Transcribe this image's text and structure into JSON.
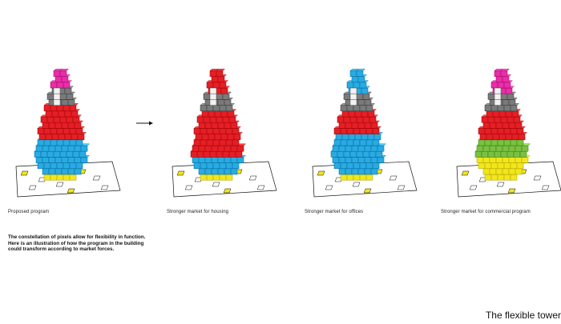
{
  "captions": {
    "proposed": "Proposed program",
    "housing": "Stronger market for housing",
    "offices": "Stronger market for offices",
    "commercial": "Stronger market for commercial program"
  },
  "description": {
    "line1": "The constellation of pixels allow for flexibility in function.",
    "line2": "Here is an illustration of how the program in the building",
    "line3": "could transform according to market forces."
  },
  "title": "The flexible tower",
  "colors": {
    "pink": "#e82ea8",
    "light_pink": "#f58fc4",
    "white_block": "#f2f2f2",
    "grey": "#7a7a7a",
    "red": "#e41f26",
    "blue": "#29abe2",
    "yellow": "#f2e61c",
    "green": "#7ac143"
  },
  "towers": [
    {
      "name": "tower-proposed",
      "layers": [
        {
          "color": "pink",
          "rows": 3
        },
        {
          "color": "grey",
          "rows": 3
        },
        {
          "color": "red",
          "rows": 6
        },
        {
          "color": "blue",
          "rows": 6
        },
        {
          "color": "yellow",
          "rows": 1
        }
      ]
    },
    {
      "name": "tower-housing",
      "layers": [
        {
          "color": "red",
          "rows": 4
        },
        {
          "color": "grey",
          "rows": 3
        },
        {
          "color": "red",
          "rows": 8
        },
        {
          "color": "blue",
          "rows": 3
        },
        {
          "color": "yellow",
          "rows": 1
        }
      ]
    },
    {
      "name": "tower-offices",
      "layers": [
        {
          "color": "blue",
          "rows": 4
        },
        {
          "color": "grey",
          "rows": 3
        },
        {
          "color": "red",
          "rows": 4
        },
        {
          "color": "blue",
          "rows": 7
        },
        {
          "color": "yellow",
          "rows": 1
        }
      ]
    },
    {
      "name": "tower-commercial",
      "layers": [
        {
          "color": "pink",
          "rows": 4
        },
        {
          "color": "grey",
          "rows": 3
        },
        {
          "color": "red",
          "rows": 5
        },
        {
          "color": "green",
          "rows": 3
        },
        {
          "color": "yellow",
          "rows": 4
        }
      ]
    }
  ]
}
